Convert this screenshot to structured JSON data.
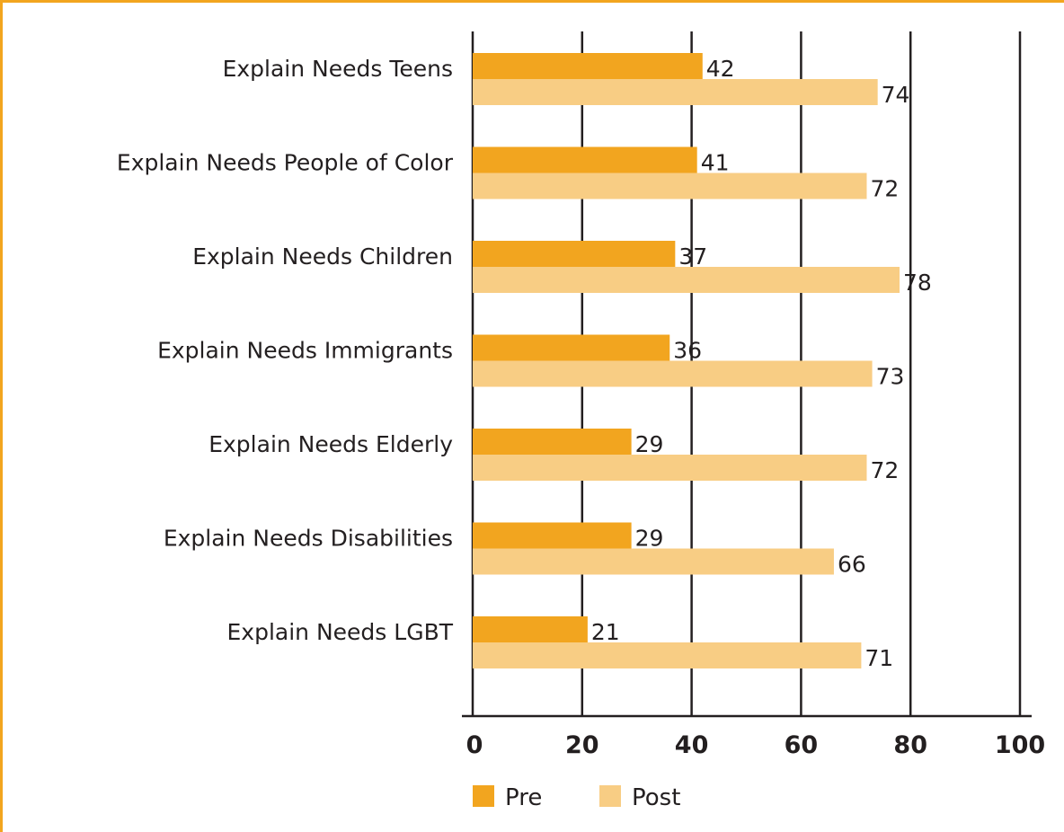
{
  "chart_data": {
    "type": "bar",
    "orientation": "horizontal",
    "categories": [
      "Explain Needs Teens",
      "Explain Needs People of Color",
      "Explain Needs Children",
      "Explain Needs Immigrants",
      "Explain Needs Elderly",
      "Explain Needs Disabilities",
      "Explain Needs LGBT"
    ],
    "series": [
      {
        "name": "Pre",
        "color": "#f2a51f",
        "values": [
          42,
          41,
          37,
          36,
          29,
          29,
          21
        ]
      },
      {
        "name": "Post",
        "color": "#f8cd84",
        "values": [
          74,
          72,
          78,
          73,
          72,
          66,
          71
        ]
      }
    ],
    "xlim": [
      0,
      100
    ],
    "xticks": [
      "0",
      "20",
      "40",
      "60",
      "80",
      "100"
    ],
    "grid": true,
    "legend_position": "bottom",
    "title": "",
    "xlabel": "",
    "ylabel": ""
  }
}
